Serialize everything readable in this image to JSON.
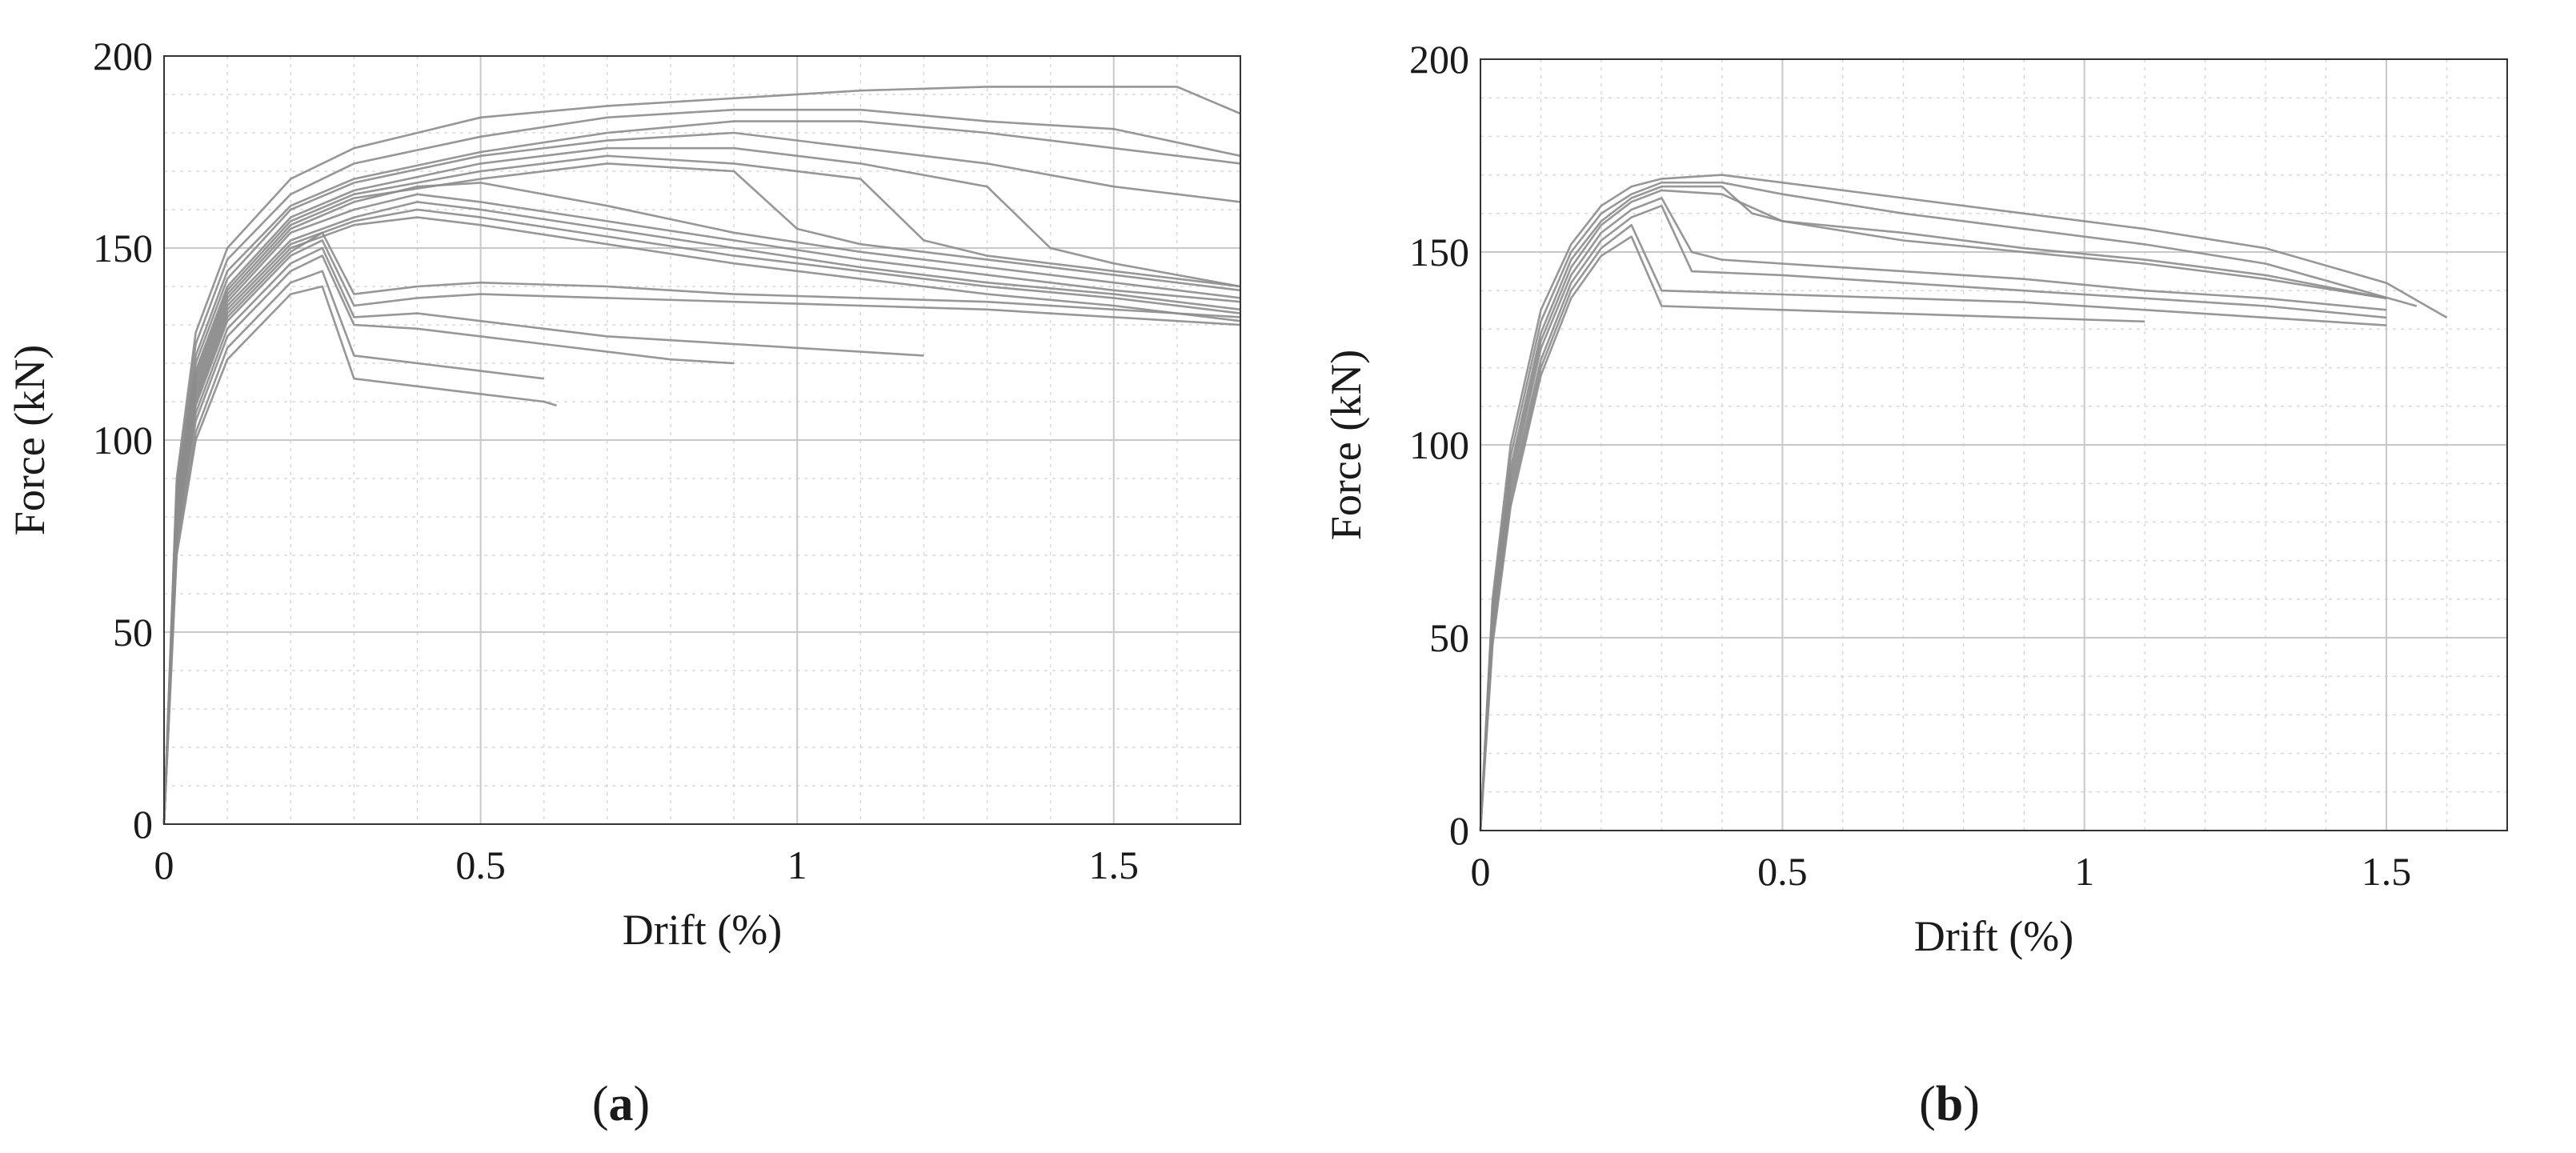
{
  "chart_data": [
    {
      "panel": "a",
      "type": "line",
      "caption": {
        "open": "(",
        "letter": "a",
        "close": ")"
      },
      "xlabel": "Drift (%)",
      "ylabel": "Force (kN)",
      "xlim": [
        0,
        1.7
      ],
      "ylim": [
        0,
        200
      ],
      "xticks": [
        0,
        0.5,
        1,
        1.5
      ],
      "xtick_labels": [
        "0",
        "0.5",
        "1",
        "1.5"
      ],
      "yticks": [
        0,
        50,
        100,
        150,
        200
      ],
      "ytick_labels": [
        "0",
        "50",
        "100",
        "150",
        "200"
      ],
      "grid": true,
      "minor_grid": true,
      "legend": "none",
      "line_color": "#8c8c8c",
      "series": [
        {
          "x": [
            0,
            0.02,
            0.05,
            0.1,
            0.2,
            0.3,
            0.5,
            0.7,
            0.9,
            1.1,
            1.3,
            1.5,
            1.6,
            1.7
          ],
          "y": [
            0,
            90,
            128,
            150,
            168,
            176,
            184,
            187,
            189,
            191,
            192,
            192,
            192,
            185
          ]
        },
        {
          "x": [
            0,
            0.02,
            0.05,
            0.1,
            0.2,
            0.3,
            0.5,
            0.7,
            0.9,
            1.1,
            1.3,
            1.5,
            1.7
          ],
          "y": [
            0,
            88,
            125,
            147,
            164,
            172,
            179,
            184,
            186,
            186,
            183,
            181,
            174
          ]
        },
        {
          "x": [
            0,
            0.02,
            0.05,
            0.1,
            0.2,
            0.3,
            0.5,
            0.7,
            0.9,
            1.1,
            1.3,
            1.5,
            1.7
          ],
          "y": [
            0,
            86,
            122,
            144,
            161,
            168,
            175,
            180,
            183,
            183,
            180,
            176,
            172
          ]
        },
        {
          "x": [
            0,
            0.02,
            0.05,
            0.1,
            0.2,
            0.3,
            0.5,
            0.7,
            0.9,
            1.1,
            1.3,
            1.5,
            1.7
          ],
          "y": [
            0,
            85,
            120,
            142,
            160,
            167,
            174,
            178,
            180,
            176,
            172,
            166,
            162
          ]
        },
        {
          "x": [
            0,
            0.02,
            0.05,
            0.1,
            0.2,
            0.3,
            0.5,
            0.7,
            0.9,
            1.1,
            1.3,
            1.4,
            1.5,
            1.7
          ],
          "y": [
            0,
            84,
            118,
            140,
            158,
            165,
            172,
            176,
            176,
            172,
            166,
            150,
            146,
            140
          ]
        },
        {
          "x": [
            0,
            0.02,
            0.05,
            0.1,
            0.2,
            0.3,
            0.5,
            0.7,
            0.9,
            1.1,
            1.2,
            1.3,
            1.5,
            1.7
          ],
          "y": [
            0,
            83,
            117,
            139,
            157,
            164,
            170,
            174,
            172,
            168,
            152,
            148,
            144,
            140
          ]
        },
        {
          "x": [
            0,
            0.02,
            0.05,
            0.1,
            0.2,
            0.3,
            0.5,
            0.7,
            0.9,
            1.0,
            1.1,
            1.3,
            1.5,
            1.7
          ],
          "y": [
            0,
            82,
            116,
            138,
            156,
            163,
            168,
            172,
            170,
            155,
            151,
            147,
            143,
            139
          ]
        },
        {
          "x": [
            0,
            0.02,
            0.05,
            0.1,
            0.2,
            0.3,
            0.4,
            0.5,
            0.7,
            0.9,
            1.1,
            1.3,
            1.5,
            1.7
          ],
          "y": [
            0,
            82,
            115,
            137,
            155,
            162,
            166,
            167,
            161,
            154,
            149,
            145,
            141,
            137
          ]
        },
        {
          "x": [
            0,
            0.02,
            0.05,
            0.1,
            0.2,
            0.3,
            0.4,
            0.5,
            0.7,
            0.9,
            1.1,
            1.3,
            1.5,
            1.7
          ],
          "y": [
            0,
            81,
            114,
            136,
            154,
            160,
            164,
            162,
            157,
            152,
            147,
            143,
            139,
            136
          ]
        },
        {
          "x": [
            0,
            0.02,
            0.05,
            0.1,
            0.2,
            0.3,
            0.4,
            0.5,
            0.7,
            0.9,
            1.1,
            1.3,
            1.5,
            1.7
          ],
          "y": [
            0,
            80,
            113,
            135,
            152,
            158,
            162,
            160,
            155,
            150,
            145,
            141,
            138,
            134
          ]
        },
        {
          "x": [
            0,
            0.02,
            0.05,
            0.1,
            0.2,
            0.3,
            0.4,
            0.5,
            0.7,
            0.9,
            1.1,
            1.3,
            1.5,
            1.7
          ],
          "y": [
            0,
            79,
            112,
            134,
            151,
            157,
            160,
            158,
            153,
            148,
            144,
            140,
            137,
            133
          ]
        },
        {
          "x": [
            0,
            0.02,
            0.05,
            0.1,
            0.2,
            0.3,
            0.4,
            0.5,
            0.7,
            0.9,
            1.1,
            1.3,
            1.5,
            1.7
          ],
          "y": [
            0,
            78,
            111,
            133,
            150,
            156,
            158,
            156,
            151,
            146,
            142,
            138,
            135,
            131
          ]
        },
        {
          "x": [
            0,
            0.02,
            0.05,
            0.1,
            0.2,
            0.25,
            0.3,
            0.4,
            0.5,
            0.7,
            0.9,
            1.1,
            1.3,
            1.5,
            1.7
          ],
          "y": [
            0,
            77,
            110,
            132,
            149,
            154,
            138,
            140,
            141,
            140,
            138,
            137,
            136,
            134,
            132
          ]
        },
        {
          "x": [
            0,
            0.02,
            0.05,
            0.1,
            0.2,
            0.25,
            0.3,
            0.4,
            0.5,
            0.7,
            0.9,
            1.1,
            1.3,
            1.5,
            1.7
          ],
          "y": [
            0,
            76,
            109,
            131,
            148,
            152,
            135,
            137,
            138,
            137,
            136,
            135,
            134,
            132,
            130
          ]
        },
        {
          "x": [
            0,
            0.02,
            0.05,
            0.1,
            0.2,
            0.25,
            0.3,
            0.4,
            0.5,
            0.6,
            0.7,
            0.9,
            1.1,
            1.2
          ],
          "y": [
            0,
            75,
            107,
            129,
            146,
            150,
            132,
            133,
            131,
            129,
            127,
            125,
            123,
            122
          ]
        },
        {
          "x": [
            0,
            0.02,
            0.05,
            0.1,
            0.2,
            0.25,
            0.3,
            0.4,
            0.5,
            0.6,
            0.7,
            0.8,
            0.9
          ],
          "y": [
            0,
            74,
            105,
            127,
            144,
            148,
            130,
            129,
            127,
            125,
            123,
            121,
            120
          ]
        },
        {
          "x": [
            0,
            0.02,
            0.05,
            0.1,
            0.2,
            0.25,
            0.3,
            0.4,
            0.5,
            0.6
          ],
          "y": [
            0,
            72,
            102,
            124,
            141,
            144,
            122,
            120,
            118,
            116
          ]
        },
        {
          "x": [
            0,
            0.02,
            0.05,
            0.1,
            0.2,
            0.25,
            0.3,
            0.4,
            0.5,
            0.6,
            0.62
          ],
          "y": [
            0,
            70,
            100,
            121,
            138,
            140,
            116,
            114,
            112,
            110,
            109
          ]
        }
      ]
    },
    {
      "panel": "b",
      "type": "line",
      "caption": {
        "open": "(",
        "letter": "b",
        "close": ")"
      },
      "xlabel": "Drift (%)",
      "ylabel": "Force (kN)",
      "xlim": [
        0,
        1.7
      ],
      "ylim": [
        0,
        200
      ],
      "xticks": [
        0,
        0.5,
        1,
        1.5
      ],
      "xtick_labels": [
        "0",
        "0.5",
        "1",
        "1.5"
      ],
      "yticks": [
        0,
        50,
        100,
        150,
        200
      ],
      "ytick_labels": [
        "0",
        "50",
        "100",
        "150",
        "200"
      ],
      "grid": true,
      "minor_grid": true,
      "legend": "none",
      "line_color": "#8c8c8c",
      "series": [
        {
          "x": [
            0,
            0.02,
            0.05,
            0.1,
            0.15,
            0.2,
            0.25,
            0.3,
            0.4,
            0.5,
            0.7,
            0.9,
            1.1,
            1.3,
            1.5,
            1.6
          ],
          "y": [
            0,
            60,
            100,
            135,
            152,
            162,
            167,
            169,
            170,
            168,
            164,
            160,
            156,
            151,
            142,
            133
          ]
        },
        {
          "x": [
            0,
            0.02,
            0.05,
            0.1,
            0.15,
            0.2,
            0.25,
            0.3,
            0.4,
            0.5,
            0.7,
            0.9,
            1.1,
            1.3,
            1.55
          ],
          "y": [
            0,
            58,
            97,
            132,
            150,
            160,
            165,
            168,
            168,
            165,
            160,
            156,
            152,
            147,
            136
          ]
        },
        {
          "x": [
            0,
            0.02,
            0.05,
            0.1,
            0.15,
            0.2,
            0.25,
            0.3,
            0.4,
            0.45,
            0.5,
            0.7,
            0.9,
            1.1,
            1.3,
            1.5
          ],
          "y": [
            0,
            56,
            94,
            129,
            148,
            158,
            164,
            167,
            167,
            160,
            158,
            155,
            151,
            148,
            144,
            138
          ]
        },
        {
          "x": [
            0,
            0.02,
            0.05,
            0.1,
            0.15,
            0.2,
            0.25,
            0.3,
            0.4,
            0.5,
            0.7,
            0.9,
            1.1,
            1.3,
            1.5
          ],
          "y": [
            0,
            55,
            92,
            127,
            146,
            157,
            163,
            166,
            165,
            158,
            153,
            150,
            147,
            143,
            138
          ]
        },
        {
          "x": [
            0,
            0.02,
            0.05,
            0.1,
            0.15,
            0.2,
            0.25,
            0.3,
            0.35,
            0.4,
            0.5,
            0.7,
            0.9,
            1.1,
            1.3,
            1.5
          ],
          "y": [
            0,
            54,
            90,
            125,
            144,
            155,
            161,
            164,
            150,
            148,
            147,
            145,
            143,
            140,
            138,
            135
          ]
        },
        {
          "x": [
            0,
            0.02,
            0.05,
            0.1,
            0.15,
            0.2,
            0.25,
            0.3,
            0.35,
            0.5,
            0.7,
            0.9,
            1.1,
            1.3,
            1.5
          ],
          "y": [
            0,
            52,
            88,
            122,
            142,
            153,
            159,
            162,
            145,
            144,
            142,
            140,
            138,
            136,
            133
          ]
        },
        {
          "x": [
            0,
            0.02,
            0.05,
            0.1,
            0.15,
            0.2,
            0.25,
            0.3,
            0.5,
            0.7,
            0.9,
            1.1,
            1.3,
            1.5
          ],
          "y": [
            0,
            50,
            86,
            120,
            140,
            151,
            157,
            140,
            139,
            138,
            137,
            135,
            133,
            131
          ]
        },
        {
          "x": [
            0,
            0.02,
            0.05,
            0.1,
            0.15,
            0.2,
            0.25,
            0.3,
            0.5,
            0.7,
            0.9,
            1.1
          ],
          "y": [
            0,
            48,
            84,
            118,
            138,
            149,
            154,
            136,
            135,
            134,
            133,
            132
          ]
        }
      ]
    }
  ]
}
